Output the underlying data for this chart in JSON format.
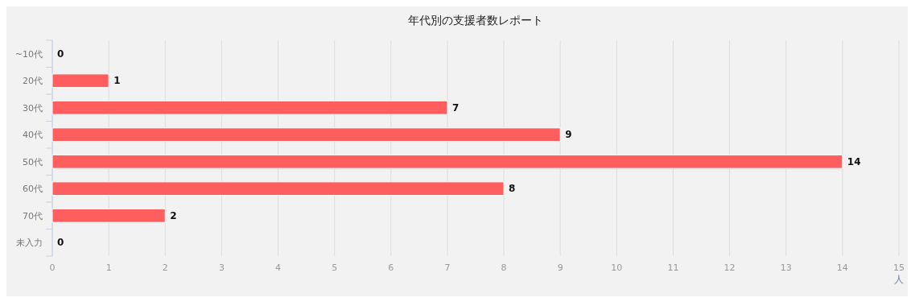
{
  "chart_data": {
    "type": "bar",
    "orientation": "horizontal",
    "title": "年代別の支援者数レポート",
    "xlabel": "人",
    "categories": [
      "~10代",
      "20代",
      "30代",
      "40代",
      "50代",
      "60代",
      "70代",
      "未入力"
    ],
    "values": [
      0,
      1,
      7,
      9,
      14,
      8,
      2,
      0
    ],
    "color": "#ff5e5e",
    "xlim": [
      0,
      15
    ],
    "xticks": [
      0,
      1,
      2,
      3,
      4,
      5,
      6,
      7,
      8,
      9,
      10,
      11,
      12,
      13,
      14,
      15
    ],
    "grid": "x",
    "data_labels": true
  }
}
